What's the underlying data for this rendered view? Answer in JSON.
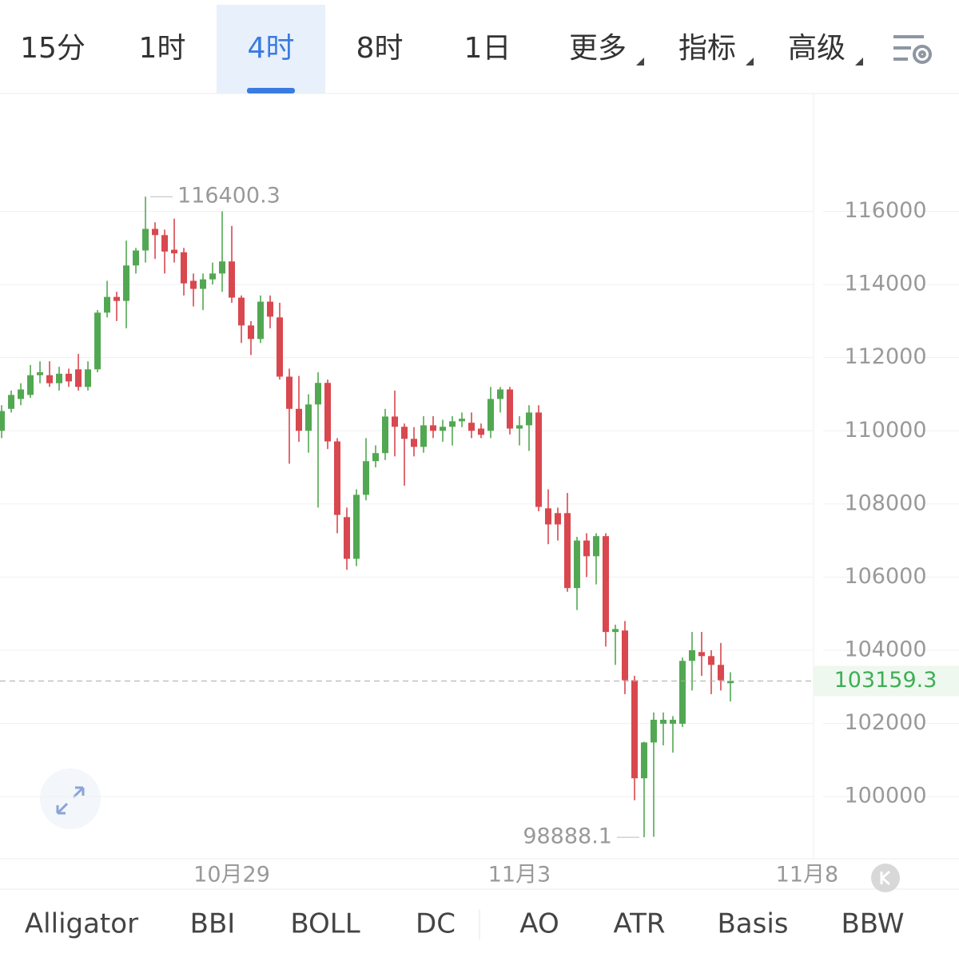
{
  "tabs": [
    "15分",
    "1时",
    "4时",
    "8时",
    "1日"
  ],
  "active_tab": 2,
  "menus": [
    "更多",
    "指标",
    "高级"
  ],
  "indicators": [
    "Alligator",
    "BBI",
    "BOLL",
    "DC",
    "AO",
    "ATR",
    "Basis",
    "BBW"
  ],
  "chart_data": {
    "type": "candlestick",
    "up_color": "#52a852",
    "down_color": "#d9474f",
    "ylim": [
      98300,
      119200
    ],
    "yticks": [
      100000,
      102000,
      104000,
      106000,
      108000,
      110000,
      112000,
      114000,
      116000
    ],
    "xlim": [
      -0.17,
      84.67
    ],
    "xticks": [
      {
        "value": 24,
        "label": "10月29"
      },
      {
        "value": 54,
        "label": "11月3"
      },
      {
        "value": 84,
        "label": "11月8"
      }
    ],
    "grid": true,
    "open": [
      110000,
      110600,
      110870,
      110980,
      111520,
      111520,
      111300,
      111560,
      111680,
      111200,
      111680,
      113230,
      113660,
      113550,
      114520,
      114930,
      115520,
      115350,
      114950,
      114880,
      114100,
      113880,
      114140,
      114300,
      114630,
      113640,
      112880,
      112510,
      113530,
      113100,
      111480,
      110600,
      110000,
      110720,
      111310,
      109710,
      107640,
      106500,
      108250,
      109170,
      109390,
      110390,
      110110,
      109780,
      109560,
      110150,
      110000,
      110110,
      110260,
      110220,
      110060,
      110000,
      110870,
      111130,
      110060,
      110150,
      110500,
      107880,
      107750,
      107750,
      105700,
      107000,
      106570,
      107120,
      104500,
      104540,
      103180,
      100500,
      101480,
      101990,
      101990,
      101990,
      103710,
      103950,
      103840,
      103600,
      103100
    ],
    "high": [
      110700,
      111100,
      111300,
      111800,
      111900,
      111900,
      111750,
      111700,
      112100,
      111900,
      113300,
      114100,
      113800,
      115200,
      115000,
      116400.3,
      115700,
      115500,
      115800,
      115000,
      114300,
      114300,
      114600,
      116000,
      115600,
      113700,
      113000,
      113700,
      113700,
      113500,
      111700,
      111500,
      111000,
      111600,
      111400,
      109800,
      107900,
      108400,
      109800,
      109600,
      110600,
      111100,
      110200,
      110100,
      110400,
      110400,
      110300,
      110400,
      110500,
      110500,
      110200,
      111200,
      111200,
      111200,
      110400,
      110700,
      110700,
      108400,
      107900,
      108300,
      107100,
      107200,
      107200,
      107200,
      104700,
      104800,
      103300,
      101500,
      102300,
      102300,
      102200,
      103800,
      104500,
      104500,
      104000,
      104200,
      103400
    ],
    "low": [
      109800,
      110500,
      110700,
      110900,
      111300,
      111200,
      111100,
      111200,
      111100,
      111100,
      111600,
      113100,
      113000,
      112800,
      114300,
      114600,
      114700,
      114300,
      114600,
      113700,
      113400,
      113300,
      114000,
      113800,
      113500,
      112400,
      112070,
      112400,
      112800,
      111400,
      109100,
      109700,
      109400,
      107900,
      109500,
      107200,
      106200,
      106300,
      108100,
      109000,
      109200,
      109300,
      108500,
      109300,
      109400,
      109800,
      109700,
      109600,
      110100,
      109800,
      109800,
      109800,
      110500,
      109900,
      109600,
      109450,
      107800,
      106900,
      107000,
      105600,
      105100,
      106000,
      105800,
      104100,
      103600,
      102800,
      99900,
      98888.1,
      98900,
      101400,
      101200,
      101900,
      102900,
      103300,
      102800,
      102900,
      102600
    ],
    "close": [
      110540,
      110980,
      111130,
      111520,
      111600,
      111300,
      111560,
      111350,
      111200,
      111680,
      113230,
      113660,
      113550,
      114520,
      114930,
      115520,
      115350,
      114900,
      114850,
      114030,
      113880,
      114140,
      114300,
      114630,
      113640,
      112880,
      112510,
      113530,
      113120,
      111480,
      110600,
      110000,
      110720,
      111310,
      109710,
      107700,
      106500,
      108250,
      109170,
      109390,
      110390,
      110110,
      109780,
      109560,
      110150,
      110000,
      110110,
      110260,
      110330,
      110000,
      109890,
      110870,
      111130,
      110060,
      110150,
      110500,
      107920,
      107440,
      107440,
      105700,
      107000,
      106570,
      107120,
      104500,
      104580,
      103180,
      100500,
      101480,
      102100,
      102100,
      102100,
      103710,
      104000,
      103840,
      103600,
      103180,
      103159.3
    ]
  }
}
